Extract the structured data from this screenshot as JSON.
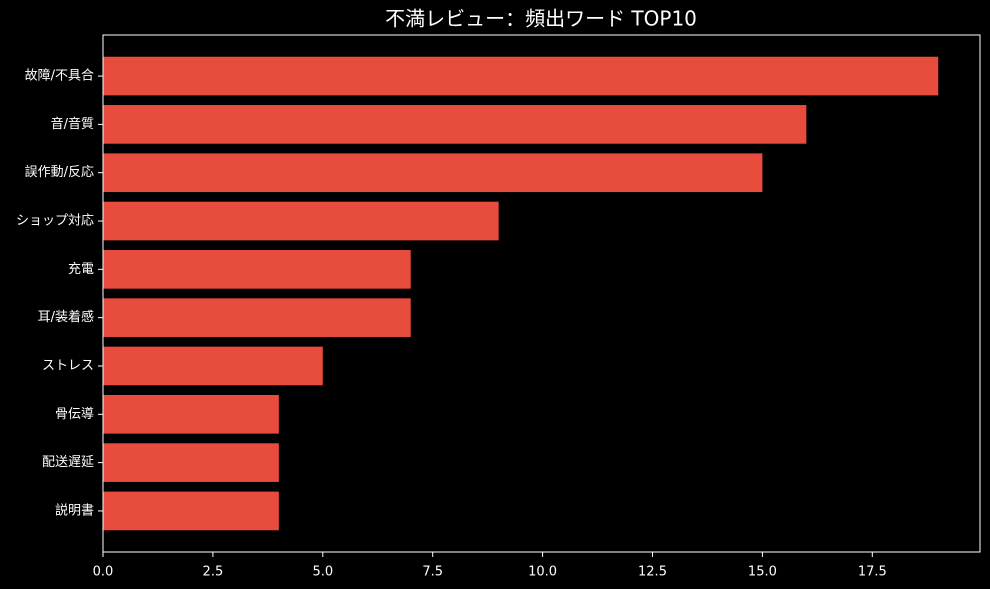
{
  "chart_data": {
    "type": "barh",
    "title": "不満レビュー：頻出ワード TOP10",
    "categories": [
      "故障/不具合",
      "音/音質",
      "誤作動/反応",
      "ショップ対応",
      "充電",
      "耳/装着感",
      "ストレス",
      "骨伝導",
      "配送遅延",
      "説明書"
    ],
    "values": [
      19,
      16,
      15,
      9,
      7,
      7,
      5,
      4,
      4,
      4
    ],
    "color": "#e74c3c",
    "xlim": [
      0,
      19.95
    ],
    "xticks": [
      {
        "value": 0,
        "label": "0.0"
      },
      2.5,
      {
        "value": 5,
        "label": "5.0"
      },
      7.5,
      {
        "value": 10,
        "label": "10.0"
      },
      12.5,
      {
        "value": 15,
        "label": "15.0"
      },
      17.5
    ],
    "grid": false
  }
}
